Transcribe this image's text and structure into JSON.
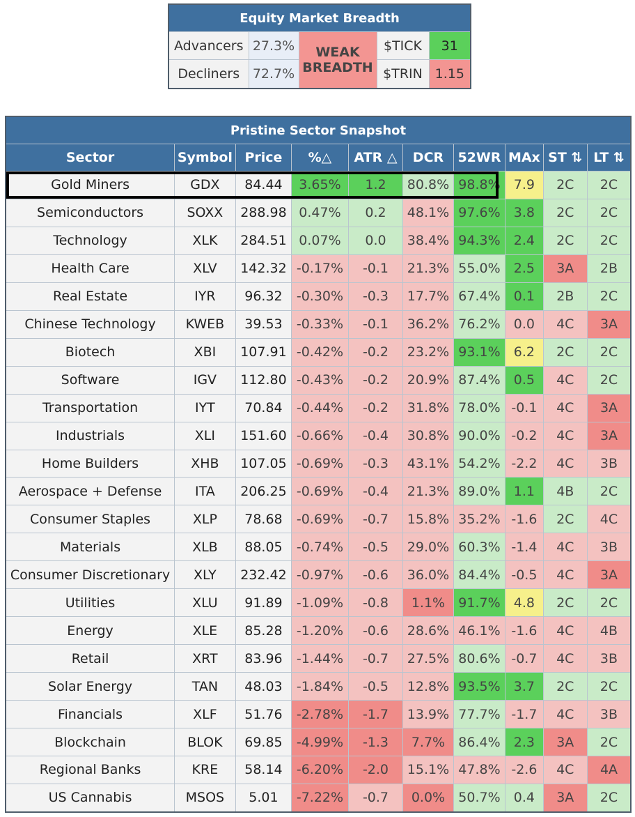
{
  "breadth": {
    "title": "Equity Market Breadth",
    "advancers_label": "Advancers",
    "advancers_value": "27.3%",
    "decliners_label": "Decliners",
    "decliners_value": "72.7%",
    "status_line1": "WEAK",
    "status_line2": "BREADTH",
    "tick_label": "$TICK",
    "tick_value": "31",
    "trin_label": "$TRIN",
    "trin_value": "1.15"
  },
  "colors": {
    "header_blue": "#3f709f",
    "strong_green": "#5bd05b",
    "medium_green": "#a9dea9",
    "light_green": "#c9ebc8",
    "strong_red": "#f08c89",
    "light_red": "#f4c2c0",
    "yellow": "#f6f08b"
  },
  "sector_table": {
    "title": "Pristine Sector Snapshot",
    "headers": [
      "Sector",
      "Symbol",
      "Price",
      "%△",
      "ATR △",
      "DCR",
      "52WR",
      "MAx",
      "ST ⇅",
      "LT ⇅"
    ],
    "rows": [
      {
        "sector": "Gold Miners",
        "symbol": "GDX",
        "price": "84.44",
        "pct": "3.65%",
        "atr": "1.2",
        "dcr": "80.8%",
        "wr": "98.8%",
        "max": "7.9",
        "st": "2C",
        "lt": "2C",
        "c": [
          "g1",
          "g1",
          "g3",
          "g1",
          "y1",
          "g3",
          "g3"
        ]
      },
      {
        "sector": "Semiconductors",
        "symbol": "SOXX",
        "price": "288.98",
        "pct": "0.47%",
        "atr": "0.2",
        "dcr": "48.1%",
        "wr": "97.6%",
        "max": "3.8",
        "st": "2C",
        "lt": "2C",
        "c": [
          "g3",
          "g3",
          "r2",
          "g1",
          "g1",
          "g3",
          "g3"
        ]
      },
      {
        "sector": "Technology",
        "symbol": "XLK",
        "price": "284.51",
        "pct": "0.07%",
        "atr": "0.0",
        "dcr": "38.4%",
        "wr": "94.3%",
        "max": "2.4",
        "st": "2C",
        "lt": "2C",
        "c": [
          "g3",
          "g3",
          "r2",
          "g1",
          "g1",
          "g3",
          "g3"
        ]
      },
      {
        "sector": "Health Care",
        "symbol": "XLV",
        "price": "142.32",
        "pct": "-0.17%",
        "atr": "-0.1",
        "dcr": "21.3%",
        "wr": "55.0%",
        "max": "2.5",
        "st": "3A",
        "lt": "2B",
        "c": [
          "r2",
          "r2",
          "r2",
          "g3",
          "g1",
          "r1",
          "g3"
        ]
      },
      {
        "sector": "Real Estate",
        "symbol": "IYR",
        "price": "96.32",
        "pct": "-0.30%",
        "atr": "-0.3",
        "dcr": "17.7%",
        "wr": "67.4%",
        "max": "0.1",
        "st": "2B",
        "lt": "2C",
        "c": [
          "r2",
          "r2",
          "r2",
          "g3",
          "g1",
          "g3",
          "g3"
        ]
      },
      {
        "sector": "Chinese Technology",
        "symbol": "KWEB",
        "price": "39.53",
        "pct": "-0.33%",
        "atr": "-0.1",
        "dcr": "36.2%",
        "wr": "76.2%",
        "max": "0.0",
        "st": "4C",
        "lt": "3A",
        "c": [
          "r2",
          "r2",
          "r2",
          "g3",
          "r2",
          "r2",
          "r1"
        ]
      },
      {
        "sector": "Biotech",
        "symbol": "XBI",
        "price": "107.91",
        "pct": "-0.42%",
        "atr": "-0.2",
        "dcr": "23.2%",
        "wr": "93.1%",
        "max": "6.2",
        "st": "2C",
        "lt": "2C",
        "c": [
          "r2",
          "r2",
          "r2",
          "g1",
          "y1",
          "g3",
          "g3"
        ]
      },
      {
        "sector": "Software",
        "symbol": "IGV",
        "price": "112.80",
        "pct": "-0.43%",
        "atr": "-0.2",
        "dcr": "20.9%",
        "wr": "87.4%",
        "max": "0.5",
        "st": "4C",
        "lt": "2C",
        "c": [
          "r2",
          "r2",
          "r2",
          "g3",
          "g1",
          "r2",
          "g3"
        ]
      },
      {
        "sector": "Transportation",
        "symbol": "IYT",
        "price": "70.84",
        "pct": "-0.44%",
        "atr": "-0.2",
        "dcr": "31.8%",
        "wr": "78.0%",
        "max": "-0.1",
        "st": "4C",
        "lt": "3A",
        "c": [
          "r2",
          "r2",
          "r2",
          "g3",
          "r2",
          "r2",
          "r1"
        ]
      },
      {
        "sector": "Industrials",
        "symbol": "XLI",
        "price": "151.60",
        "pct": "-0.66%",
        "atr": "-0.4",
        "dcr": "30.8%",
        "wr": "90.0%",
        "max": "-0.2",
        "st": "4C",
        "lt": "3A",
        "c": [
          "r2",
          "r2",
          "r2",
          "g3",
          "r2",
          "r2",
          "r1"
        ]
      },
      {
        "sector": "Home Builders",
        "symbol": "XHB",
        "price": "107.05",
        "pct": "-0.69%",
        "atr": "-0.3",
        "dcr": "43.1%",
        "wr": "54.2%",
        "max": "-2.2",
        "st": "4C",
        "lt": "3B",
        "c": [
          "r2",
          "r2",
          "r2",
          "g3",
          "r2",
          "r2",
          "r2"
        ]
      },
      {
        "sector": "Aerospace + Defense",
        "symbol": "ITA",
        "price": "206.25",
        "pct": "-0.69%",
        "atr": "-0.4",
        "dcr": "21.3%",
        "wr": "89.0%",
        "max": "1.1",
        "st": "4B",
        "lt": "2C",
        "c": [
          "r2",
          "r2",
          "r2",
          "g3",
          "g1",
          "g3",
          "g3"
        ]
      },
      {
        "sector": "Consumer Staples",
        "symbol": "XLP",
        "price": "78.68",
        "pct": "-0.69%",
        "atr": "-0.7",
        "dcr": "15.8%",
        "wr": "35.2%",
        "max": "-1.6",
        "st": "2C",
        "lt": "4C",
        "c": [
          "r2",
          "r2",
          "r2",
          "r2",
          "r2",
          "g3",
          "r2"
        ]
      },
      {
        "sector": "Materials",
        "symbol": "XLB",
        "price": "88.05",
        "pct": "-0.74%",
        "atr": "-0.5",
        "dcr": "29.0%",
        "wr": "60.3%",
        "max": "-1.4",
        "st": "4C",
        "lt": "3B",
        "c": [
          "r2",
          "r2",
          "r2",
          "g3",
          "r2",
          "r2",
          "r2"
        ]
      },
      {
        "sector": "Consumer Discretionary",
        "symbol": "XLY",
        "price": "232.42",
        "pct": "-0.97%",
        "atr": "-0.6",
        "dcr": "36.0%",
        "wr": "84.4%",
        "max": "-0.5",
        "st": "4C",
        "lt": "3A",
        "c": [
          "r2",
          "r2",
          "r2",
          "g3",
          "r2",
          "r2",
          "r1"
        ]
      },
      {
        "sector": "Utilities",
        "symbol": "XLU",
        "price": "91.89",
        "pct": "-1.09%",
        "atr": "-0.8",
        "dcr": "1.1%",
        "wr": "91.7%",
        "max": "4.8",
        "st": "2C",
        "lt": "2C",
        "c": [
          "r2",
          "r2",
          "r1",
          "g1",
          "y1",
          "g3",
          "g3"
        ]
      },
      {
        "sector": "Energy",
        "symbol": "XLE",
        "price": "85.28",
        "pct": "-1.20%",
        "atr": "-0.6",
        "dcr": "28.6%",
        "wr": "46.1%",
        "max": "-1.6",
        "st": "4C",
        "lt": "4B",
        "c": [
          "r2",
          "r2",
          "r2",
          "r2",
          "r2",
          "r2",
          "r2"
        ]
      },
      {
        "sector": "Retail",
        "symbol": "XRT",
        "price": "83.96",
        "pct": "-1.44%",
        "atr": "-0.7",
        "dcr": "27.5%",
        "wr": "80.6%",
        "max": "-0.7",
        "st": "4C",
        "lt": "3B",
        "c": [
          "r2",
          "r2",
          "r2",
          "g3",
          "r2",
          "r2",
          "r2"
        ]
      },
      {
        "sector": "Solar Energy",
        "symbol": "TAN",
        "price": "48.03",
        "pct": "-1.84%",
        "atr": "-0.5",
        "dcr": "12.8%",
        "wr": "93.5%",
        "max": "3.7",
        "st": "2C",
        "lt": "2C",
        "c": [
          "r2",
          "r2",
          "r2",
          "g1",
          "g1",
          "g3",
          "g3"
        ]
      },
      {
        "sector": "Financials",
        "symbol": "XLF",
        "price": "51.76",
        "pct": "-2.78%",
        "atr": "-1.7",
        "dcr": "13.9%",
        "wr": "77.7%",
        "max": "-1.7",
        "st": "4C",
        "lt": "3B",
        "c": [
          "r1",
          "r1",
          "r2",
          "g3",
          "r2",
          "r2",
          "r2"
        ]
      },
      {
        "sector": "Blockchain",
        "symbol": "BLOK",
        "price": "69.85",
        "pct": "-4.99%",
        "atr": "-1.3",
        "dcr": "7.7%",
        "wr": "86.4%",
        "max": "2.3",
        "st": "3A",
        "lt": "2C",
        "c": [
          "r1",
          "r1",
          "r1",
          "g3",
          "g1",
          "r1",
          "g3"
        ]
      },
      {
        "sector": "Regional Banks",
        "symbol": "KRE",
        "price": "58.14",
        "pct": "-6.20%",
        "atr": "-2.0",
        "dcr": "15.1%",
        "wr": "47.8%",
        "max": "-2.6",
        "st": "4C",
        "lt": "4A",
        "c": [
          "r1",
          "r1",
          "r2",
          "r2",
          "r2",
          "r2",
          "r1"
        ]
      },
      {
        "sector": "US Cannabis",
        "symbol": "MSOS",
        "price": "5.01",
        "pct": "-7.22%",
        "atr": "-0.7",
        "dcr": "0.0%",
        "wr": "50.7%",
        "max": "0.4",
        "st": "3A",
        "lt": "2C",
        "c": [
          "r1",
          "r2",
          "r1",
          "g3",
          "g3",
          "r1",
          "g3"
        ]
      }
    ]
  }
}
